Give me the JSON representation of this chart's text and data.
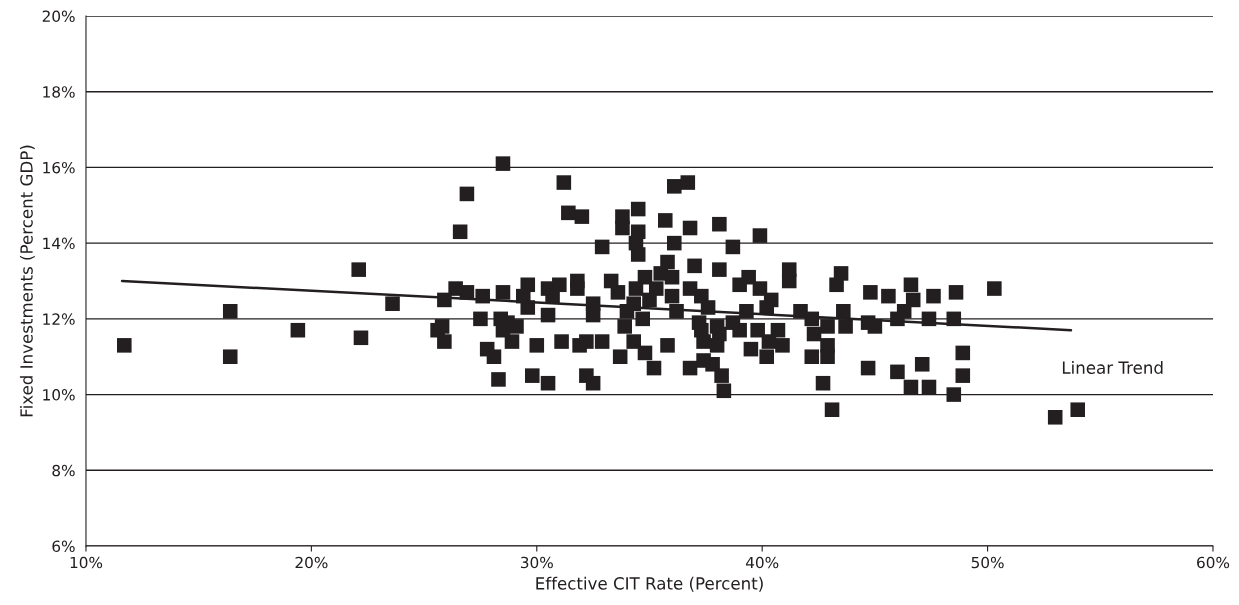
{
  "chart_data": {
    "type": "scatter",
    "xlabel": "Effective CIT Rate (Percent)",
    "ylabel": "Fixed Investments (Percent GDP)",
    "xlim": [
      10,
      60
    ],
    "ylim": [
      6,
      20
    ],
    "xticks": [
      {
        "value": 10,
        "label": "10%"
      },
      {
        "value": 20,
        "label": "20%"
      },
      {
        "value": 30,
        "label": "30%"
      },
      {
        "value": 40,
        "label": "40%"
      },
      {
        "value": 50,
        "label": "50%"
      },
      {
        "value": 60,
        "label": "60%"
      }
    ],
    "yticks": [
      {
        "value": 6,
        "label": "6%"
      },
      {
        "value": 8,
        "label": "8%"
      },
      {
        "value": 10,
        "label": "10%"
      },
      {
        "value": 12,
        "label": "12%"
      },
      {
        "value": 14,
        "label": "14%"
      },
      {
        "value": 16,
        "label": "16%"
      },
      {
        "value": 18,
        "label": "18%"
      },
      {
        "value": 20,
        "label": "20%"
      }
    ],
    "grid": "y",
    "legend": false,
    "series": [
      {
        "color": "#231f20",
        "marker": "square",
        "x": [
          11.7,
          16.4,
          16.4,
          19.4,
          22.1,
          22.2,
          23.6,
          25.6,
          26.9,
          26.6,
          28.5,
          31.2,
          31.4,
          32.0,
          33.8,
          33.8,
          34.5,
          34.5,
          34.4,
          34.5,
          32.9,
          35.7,
          36.1,
          36.7,
          36.1,
          36.8,
          35.8,
          37.0,
          26.4,
          26.9,
          27.6,
          25.9,
          28.5,
          29.6,
          29.4,
          29.6,
          30.5,
          30.7,
          31.0,
          31.8,
          31.8,
          33.3,
          33.6,
          32.5,
          32.5,
          34.8,
          35.5,
          36.0,
          35.3,
          34.4,
          35.0,
          34.3,
          36.0,
          36.8,
          34.0,
          34.7,
          36.2,
          27.5,
          28.4,
          28.7,
          28.5,
          29.1,
          30.5,
          33.9,
          25.8,
          25.9,
          27.8,
          28.1,
          28.9,
          30.0,
          31.1,
          31.9,
          32.2,
          32.9,
          34.3,
          34.8,
          33.7,
          35.8,
          35.2,
          36.8,
          28.3,
          29.8,
          30.5,
          32.2,
          32.5,
          38.1,
          38.7,
          39.9,
          38.1,
          39.0,
          39.4,
          39.9,
          41.2,
          41.2,
          43.5,
          43.3,
          44.8,
          45.6,
          46.6,
          46.7,
          37.3,
          37.6,
          40.4,
          40.2,
          39.3,
          41.7,
          42.2,
          42.9,
          43.6,
          43.7,
          44.7,
          45.0,
          46.0,
          46.3,
          37.2,
          38.0,
          37.3,
          38.1,
          38.7,
          39.0,
          39.8,
          40.7,
          42.3,
          37.4,
          38.0,
          40.3,
          40.9,
          39.5,
          42.9,
          42.2,
          42.9,
          40.2,
          37.4,
          37.8,
          38.2,
          38.3,
          44.7,
          46.0,
          42.7,
          46.6,
          43.1,
          47.6,
          48.6,
          50.3,
          47.4,
          48.5,
          48.9,
          47.1,
          48.9,
          47.4,
          48.5,
          53.0,
          54.0
        ],
        "values": [
          11.3,
          12.2,
          11.0,
          11.7,
          13.3,
          11.5,
          12.4,
          11.7,
          15.3,
          14.3,
          16.1,
          15.6,
          14.8,
          14.7,
          14.7,
          14.4,
          14.9,
          14.3,
          14.0,
          13.7,
          13.9,
          14.6,
          15.5,
          15.6,
          14.0,
          14.4,
          13.5,
          13.4,
          12.8,
          12.7,
          12.6,
          12.5,
          12.7,
          12.9,
          12.6,
          12.3,
          12.8,
          12.6,
          12.9,
          13.0,
          12.8,
          13.0,
          12.7,
          12.4,
          12.1,
          13.1,
          13.2,
          13.1,
          12.8,
          12.8,
          12.5,
          12.4,
          12.6,
          12.8,
          12.2,
          12.0,
          12.2,
          12.0,
          12.0,
          11.9,
          11.7,
          11.8,
          12.1,
          11.8,
          11.8,
          11.4,
          11.2,
          11.0,
          11.4,
          11.3,
          11.4,
          11.3,
          11.4,
          11.4,
          11.4,
          11.1,
          11.0,
          11.3,
          10.7,
          10.7,
          10.4,
          10.5,
          10.3,
          10.5,
          10.3,
          14.5,
          13.9,
          14.2,
          13.3,
          12.9,
          13.1,
          12.8,
          13.3,
          13.0,
          13.2,
          12.9,
          12.7,
          12.6,
          12.9,
          12.5,
          12.6,
          12.3,
          12.5,
          12.3,
          12.2,
          12.2,
          12.0,
          11.8,
          12.2,
          11.8,
          11.9,
          11.8,
          12.0,
          12.2,
          11.9,
          11.8,
          11.7,
          11.6,
          11.9,
          11.7,
          11.7,
          11.7,
          11.6,
          11.4,
          11.3,
          11.4,
          11.3,
          11.2,
          11.3,
          11.0,
          11.0,
          11.0,
          10.9,
          10.8,
          10.5,
          10.1,
          10.7,
          10.6,
          10.3,
          10.2,
          9.6,
          12.6,
          12.7,
          12.8,
          12.0,
          12.0,
          11.1,
          10.8,
          10.5,
          10.2,
          10.0,
          9.4,
          9.6
        ]
      },
      {
        "type": "line",
        "color": "#231f20",
        "marker": "none",
        "line_style": "solid",
        "x": [
          11.6,
          53.7
        ],
        "values": [
          13.0,
          11.7
        ]
      }
    ],
    "annotations": [
      {
        "text": "Linear Trend",
        "x": 53.7,
        "y": 11.7
      }
    ]
  }
}
